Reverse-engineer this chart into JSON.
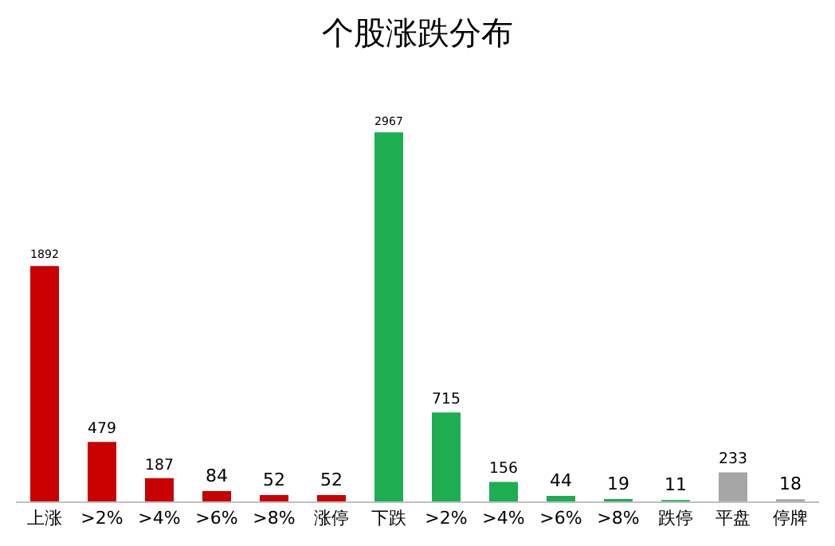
{
  "chart_data": {
    "type": "bar",
    "title": "个股涨跌分布",
    "categories": [
      "上涨",
      ">2%",
      ">4%",
      ">6%",
      ">8%",
      "涨停",
      "下跌",
      ">2%",
      ">4%",
      ">6%",
      ">8%",
      "跌停",
      "平盘",
      "停牌"
    ],
    "values": [
      1892,
      479,
      187,
      84,
      52,
      52,
      2967,
      715,
      156,
      44,
      19,
      11,
      233,
      18
    ],
    "colors": [
      "#c80000",
      "#c80000",
      "#c80000",
      "#c80000",
      "#c80000",
      "#c80000",
      "#1dae52",
      "#1dae52",
      "#1dae52",
      "#1dae52",
      "#1dae52",
      "#1dae52",
      "#a6a6a6",
      "#a6a6a6"
    ],
    "data_labels": true
  }
}
